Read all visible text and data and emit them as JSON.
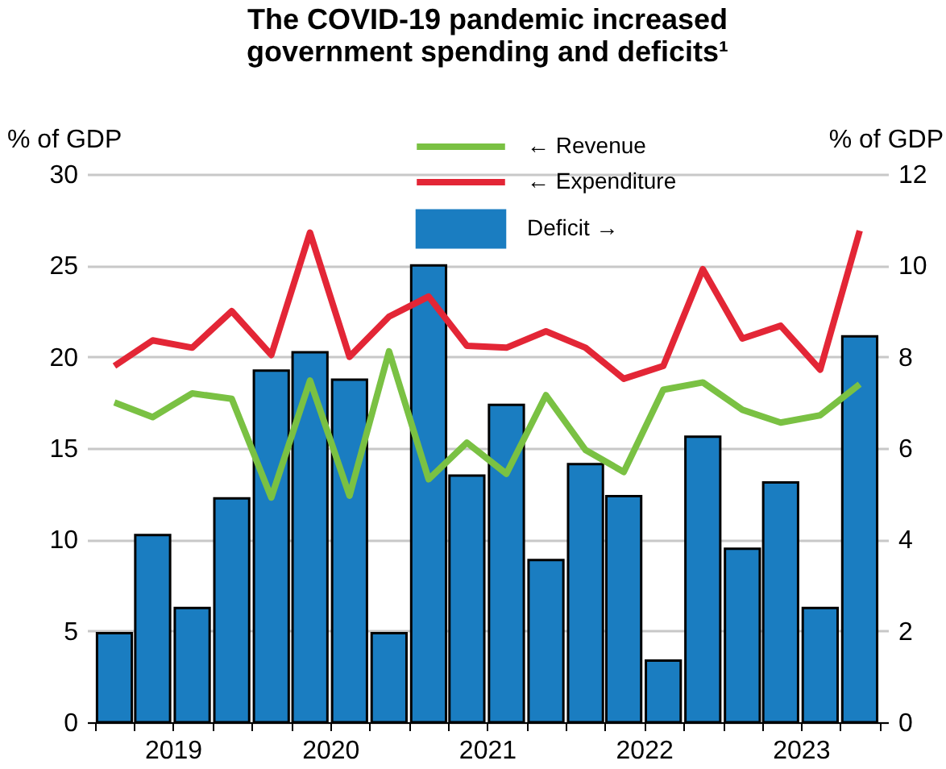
{
  "chart_data": {
    "type": "bar",
    "title": "The COVID-19 pandemic increased government spending and deficits¹",
    "ylabel": "% of GDP",
    "y2label": "% of GDP",
    "x": [
      "2019-02-15",
      "2019-05-15",
      "2019-08-15",
      "2019-11-15",
      "2020-02-15",
      "2020-05-15",
      "2020-08-15",
      "2020-11-15",
      "2021-02-15",
      "2021-05-15",
      "2021-08-15",
      "2021-11-15",
      "2022-02-15",
      "2022-05-15",
      "2022-08-15",
      "2022-11-15",
      "2023-02-15",
      "2023-05-15",
      "2023-08-15",
      "2023-11-15"
    ],
    "xlim": [
      "2019-01-01",
      "2024-01-01"
    ],
    "xticks": [
      {
        "value": "2019-01-01",
        "label": null
      },
      {
        "value": "2019-04-01",
        "label": null
      },
      {
        "value": "2019-07-01",
        "label": "2019"
      },
      {
        "value": "2019-10-01",
        "label": null
      },
      {
        "value": "2020-01-01",
        "label": null
      },
      {
        "value": "2020-04-01",
        "label": null
      },
      {
        "value": "2020-07-01",
        "label": "2020"
      },
      {
        "value": "2020-10-01",
        "label": null
      },
      {
        "value": "2021-01-01",
        "label": null
      },
      {
        "value": "2021-04-01",
        "label": null
      },
      {
        "value": "2021-07-01",
        "label": "2021"
      },
      {
        "value": "2021-10-01",
        "label": null
      },
      {
        "value": "2022-01-01",
        "label": null
      },
      {
        "value": "2022-04-01",
        "label": null
      },
      {
        "value": "2022-07-01",
        "label": "2022"
      },
      {
        "value": "2022-10-01",
        "label": null
      },
      {
        "value": "2023-01-01",
        "label": null
      },
      {
        "value": "2023-04-01",
        "label": null
      },
      {
        "value": "2023-07-01",
        "label": "2023"
      },
      {
        "value": "2023-10-01",
        "label": null
      },
      {
        "value": "2024-01-01",
        "label": null
      }
    ],
    "series": [
      {
        "name": "← Revenue",
        "type": "line",
        "color": "#7ac143",
        "values": [
          17.5,
          16.7,
          18.0,
          17.7,
          12.3,
          18.7,
          12.4,
          20.3,
          13.3,
          15.3,
          13.6,
          17.9,
          14.9,
          13.7,
          18.2,
          18.6,
          17.1,
          16.4,
          16.8,
          18.5
        ]
      },
      {
        "name": "← Expenditure",
        "type": "line",
        "color": "#e32636",
        "values": [
          19.5,
          20.9,
          20.5,
          22.5,
          20.1,
          26.8,
          20.0,
          22.2,
          23.3,
          20.6,
          20.5,
          21.4,
          20.5,
          18.8,
          19.5,
          24.8,
          21.0,
          21.7,
          19.3,
          26.9
        ]
      },
      {
        "name": "Deficit →",
        "type": "bar",
        "axis": "y2",
        "color": "#1a7dc1",
        "values": [
          1.95,
          4.1,
          2.5,
          4.9,
          7.7,
          8.1,
          7.5,
          1.95,
          10.0,
          5.4,
          6.95,
          3.55,
          5.65,
          4.95,
          1.35,
          6.25,
          3.8,
          5.25,
          2.5,
          8.45
        ]
      }
    ],
    "ylim": [
      0,
      30
    ],
    "yticks": [
      0,
      5,
      10,
      15,
      20,
      25,
      30
    ],
    "y2lim": [
      0,
      12
    ],
    "y2ticks": [
      0,
      2,
      4,
      6,
      8,
      10,
      12
    ],
    "grid": "y",
    "legend": "top right"
  }
}
